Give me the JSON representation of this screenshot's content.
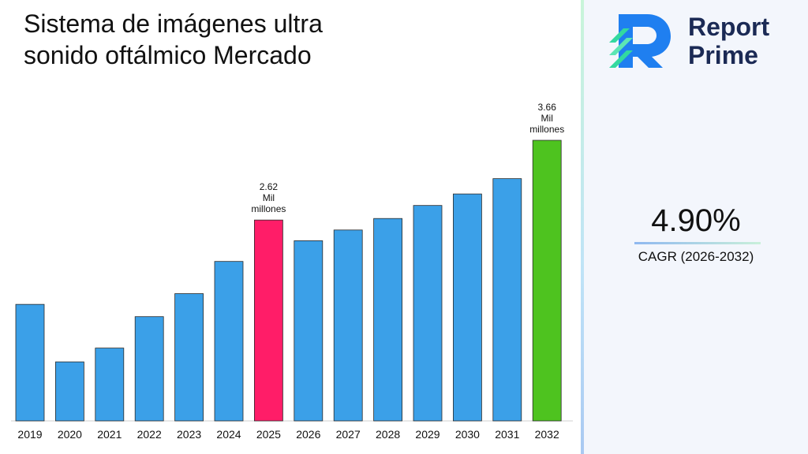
{
  "chart_data": {
    "type": "bar",
    "title": "Sistema de imágenes ultra sonido oftálmico Mercado",
    "categories": [
      "2019",
      "2020",
      "2021",
      "2022",
      "2023",
      "2024",
      "2025",
      "2026",
      "2027",
      "2028",
      "2029",
      "2030",
      "2031",
      "2032"
    ],
    "values": [
      1.52,
      0.77,
      0.95,
      1.36,
      1.66,
      2.08,
      2.62,
      2.35,
      2.49,
      2.64,
      2.81,
      2.96,
      3.16,
      3.66
    ],
    "ylim": [
      0,
      3.66
    ],
    "unit_label": "Mil millones",
    "annotated": [
      {
        "index": 6,
        "value_text": "2.62",
        "unit_line1": "Mil",
        "unit_line2": "millones"
      },
      {
        "index": 13,
        "value_text": "3.66",
        "unit_line1": "Mil",
        "unit_line2": "millones"
      }
    ],
    "colors": {
      "default": "#3ba0e8",
      "highlight_2025": "#ff1d68",
      "highlight_2032": "#4ec31f"
    },
    "grid": false,
    "legend": "none"
  },
  "brand": {
    "line1": "Report",
    "line2": "Prime",
    "colors": {
      "text": "#1b2a55",
      "accent_blue": "#1f7ff0",
      "accent_green": "#33d9a0"
    }
  },
  "cagr": {
    "value": "4.90%",
    "label": "CAGR (2026-2032)"
  }
}
